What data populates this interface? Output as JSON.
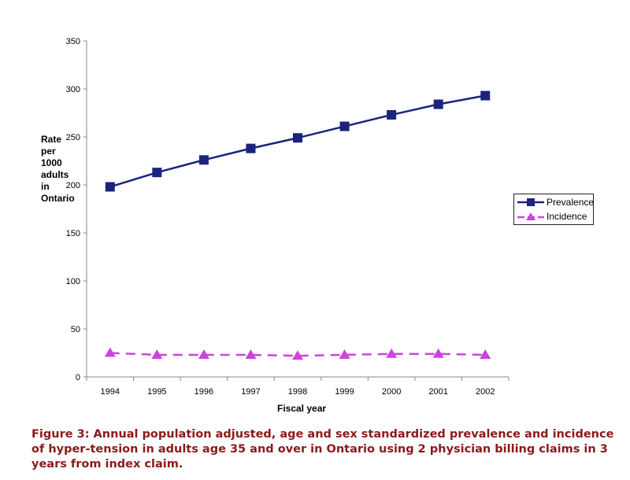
{
  "chart_data": {
    "type": "line",
    "title": "",
    "xlabel": "Fiscal year",
    "ylabel": "Rate per 1000 adults in Ontario",
    "ylabel_lines": [
      "Rate",
      "per",
      "1000",
      "adults",
      "in",
      "Ontario"
    ],
    "categories": [
      "1994",
      "1995",
      "1996",
      "1997",
      "1998",
      "1999",
      "2000",
      "2001",
      "2002"
    ],
    "yticks": [
      0,
      50,
      100,
      150,
      200,
      250,
      300,
      350
    ],
    "ylim": [
      0,
      350
    ],
    "grid": false,
    "legend_position": "right",
    "series": [
      {
        "name": "Prevalence",
        "color": "#1a237e",
        "marker": "square",
        "dash": false,
        "values": [
          198,
          213,
          226,
          238,
          249,
          261,
          273,
          284,
          293
        ]
      },
      {
        "name": "Incidence",
        "color": "#cc44dd",
        "marker": "triangle",
        "dash": true,
        "values": [
          25,
          23,
          23,
          23,
          22,
          23,
          24,
          24,
          23
        ]
      }
    ]
  },
  "caption": "Figure 3: Annual population adjusted, age and sex standardized prevalence and  incidence of hyper-tension in adults age 35 and over in Ontario using 2 physician billing claims in 3 years from index claim."
}
